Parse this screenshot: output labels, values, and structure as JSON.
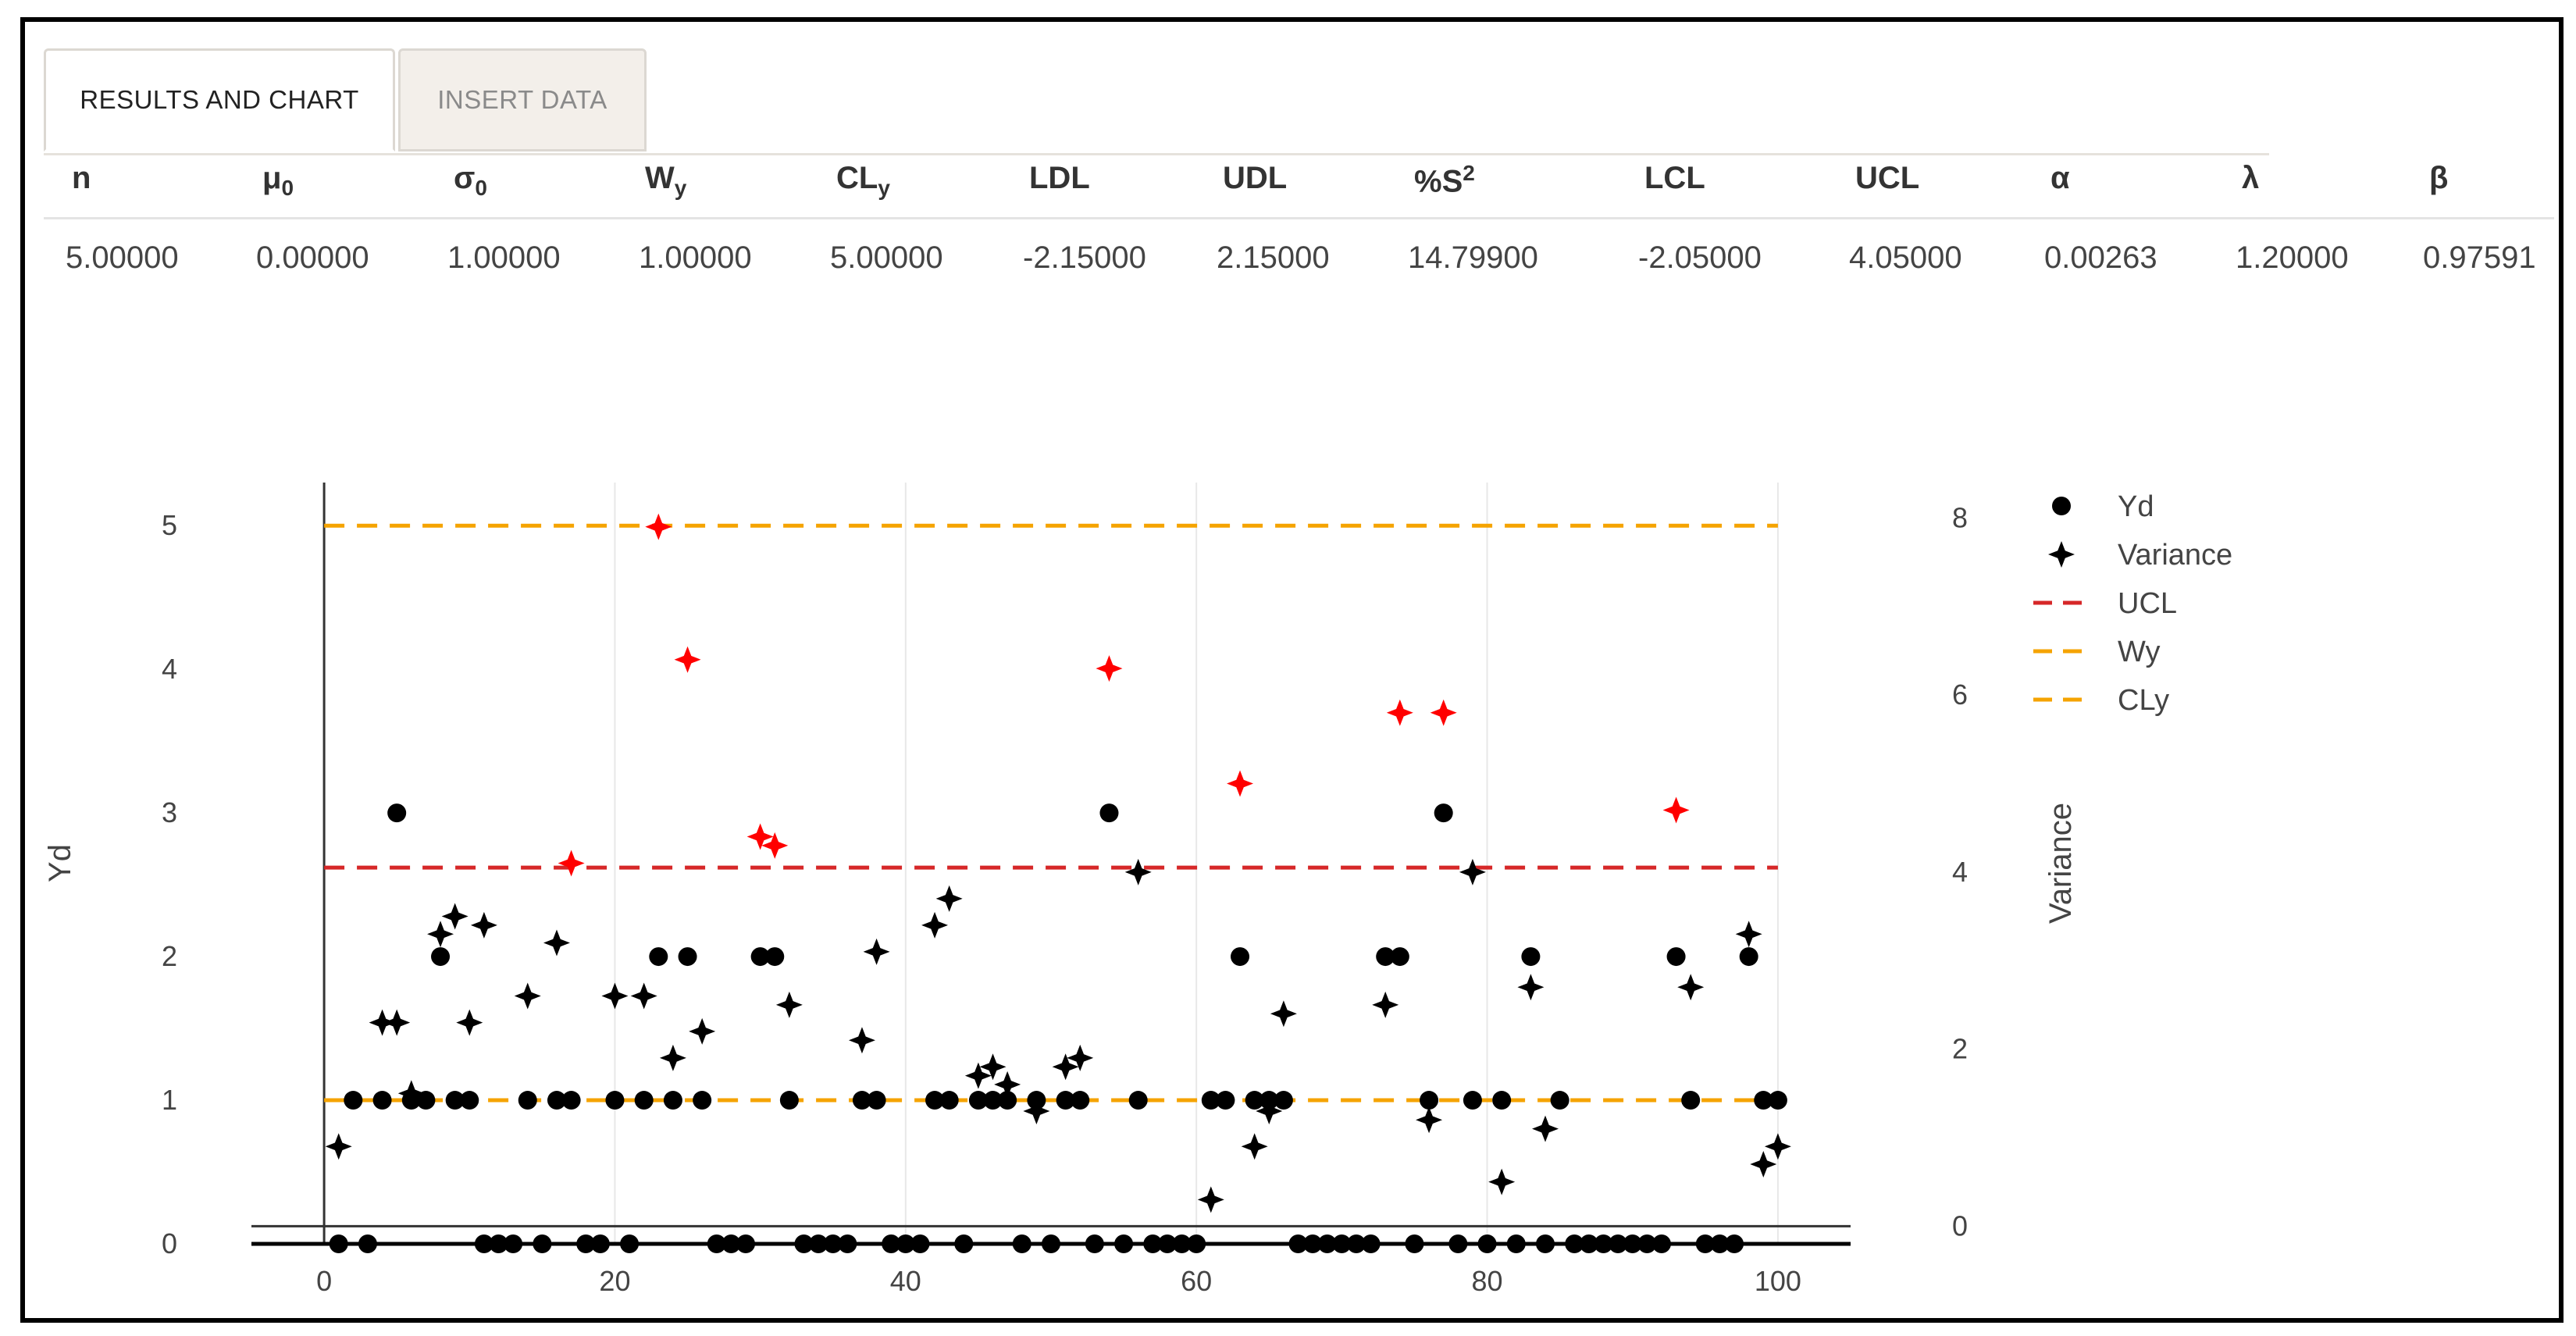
{
  "tabs": [
    {
      "label": "RESULTS AND CHART",
      "active": true
    },
    {
      "label": "INSERT DATA",
      "active": false
    }
  ],
  "params": [
    {
      "base": "n",
      "sub": "",
      "sup": "",
      "value": "5.00000"
    },
    {
      "base": "μ",
      "sub": "0",
      "sup": "",
      "value": "0.00000"
    },
    {
      "base": "σ",
      "sub": "0",
      "sup": "",
      "value": "1.00000"
    },
    {
      "base": "W",
      "sub": "y",
      "sup": "",
      "value": "1.00000"
    },
    {
      "base": "CL",
      "sub": "y",
      "sup": "",
      "value": "5.00000"
    },
    {
      "base": "LDL",
      "sub": "",
      "sup": "",
      "value": "-2.15000"
    },
    {
      "base": "UDL",
      "sub": "",
      "sup": "",
      "value": "2.15000"
    },
    {
      "base": "%S",
      "sub": "",
      "sup": "2",
      "value": "14.79900"
    },
    {
      "base": "LCL",
      "sub": "",
      "sup": "",
      "value": "-2.05000"
    },
    {
      "base": "UCL",
      "sub": "",
      "sup": "",
      "value": "4.05000"
    },
    {
      "base": "α",
      "sub": "",
      "sup": "",
      "value": "0.00263"
    },
    {
      "base": "λ",
      "sub": "",
      "sup": "",
      "value": "1.20000"
    },
    {
      "base": "β",
      "sub": "",
      "sup": "",
      "value": "0.97591"
    }
  ],
  "chart_data": {
    "type": "scatter",
    "ylabel": "Yd",
    "y2label": "Variance",
    "xlim": [
      -5,
      105
    ],
    "ylim": [
      0,
      5.3
    ],
    "y2lim": [
      -0.2,
      8.4
    ],
    "xticks": [
      0,
      20,
      40,
      60,
      80,
      100
    ],
    "yticks": [
      0,
      1,
      2,
      3,
      4,
      5
    ],
    "y2ticks": [
      0,
      2,
      4,
      6,
      8
    ],
    "legend": [
      {
        "label": "Yd",
        "kind": "dot",
        "color": "#000000"
      },
      {
        "label": "Variance",
        "kind": "star",
        "color": "#000000"
      },
      {
        "label": "UCL",
        "kind": "dash",
        "color": "#d62728"
      },
      {
        "label": "Wy",
        "kind": "dash",
        "color": "#f5a300"
      },
      {
        "label": "CLy",
        "kind": "dash",
        "color": "#f5a300"
      }
    ],
    "colors": {
      "point": "#000000",
      "violation": "#ff0000",
      "ucl": "#d62728",
      "limit": "#f5a300",
      "grid": "#e8e8e8"
    },
    "ucl": 4.05,
    "wy": 1,
    "cly": 5,
    "yd": [
      0,
      1,
      0,
      1,
      3,
      1,
      1,
      2,
      1,
      1,
      0,
      0,
      0,
      1,
      0,
      1,
      1,
      0,
      0,
      1,
      0,
      1,
      2,
      1,
      2,
      1,
      0,
      0,
      0,
      2,
      2,
      1,
      0,
      0,
      0,
      0,
      1,
      1,
      0,
      0,
      0,
      1,
      1,
      0,
      1,
      1,
      1,
      0,
      1,
      0,
      1,
      1,
      0,
      3,
      0,
      1,
      0,
      0,
      0,
      0,
      1,
      1,
      2,
      1,
      1,
      1,
      0,
      0,
      0,
      0,
      0,
      0,
      2,
      2,
      0,
      1,
      3,
      0,
      1,
      0,
      1,
      0,
      2,
      0,
      1,
      0,
      0,
      0,
      0,
      0,
      0,
      0,
      2,
      1,
      0,
      0,
      0,
      2,
      1,
      1
    ],
    "variance": [
      0.9,
      null,
      null,
      2.3,
      2.3,
      1.5,
      null,
      3.3,
      3.5,
      2.3,
      3.4,
      null,
      null,
      2.6,
      null,
      3.2,
      4.1,
      null,
      null,
      2.6,
      null,
      2.6,
      7.9,
      1.9,
      6.4,
      2.2,
      null,
      null,
      null,
      4.4,
      4.3,
      2.5,
      null,
      null,
      null,
      null,
      2.1,
      3.1,
      null,
      null,
      null,
      3.4,
      3.7,
      null,
      1.7,
      1.8,
      1.6,
      null,
      1.3,
      null,
      1.8,
      1.9,
      null,
      6.3,
      null,
      4.0,
      null,
      null,
      null,
      null,
      0.3,
      null,
      5.0,
      0.9,
      1.3,
      2.4,
      null,
      null,
      null,
      null,
      null,
      null,
      2.5,
      5.8,
      null,
      1.2,
      5.8,
      null,
      4.0,
      null,
      0.5,
      null,
      2.7,
      1.1,
      null,
      null,
      null,
      null,
      null,
      null,
      null,
      null,
      4.7,
      2.7,
      null,
      null,
      null,
      3.3,
      0.7,
      0.9
    ]
  }
}
